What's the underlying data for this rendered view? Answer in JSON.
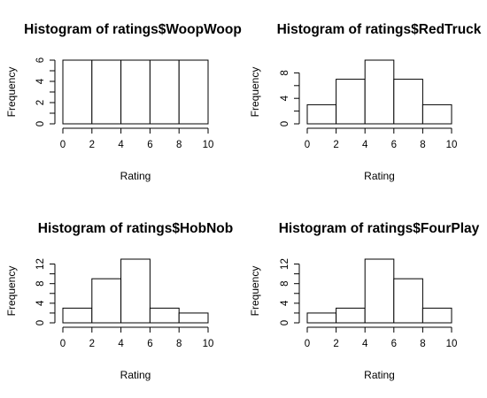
{
  "chart_data": [
    {
      "type": "bar",
      "title": "Histogram of ratings$WoopWoop",
      "xlabel": "Rating",
      "ylabel": "Frequency",
      "bins": [
        [
          0,
          2
        ],
        [
          2,
          4
        ],
        [
          4,
          6
        ],
        [
          6,
          8
        ],
        [
          8,
          10
        ]
      ],
      "values": [
        6,
        6,
        6,
        6,
        6
      ],
      "xlim": [
        0,
        10
      ],
      "ylim": [
        0,
        6
      ],
      "xticks": [
        0,
        2,
        4,
        6,
        8,
        10
      ],
      "yticks": [
        0,
        2,
        4,
        6
      ],
      "bar_color": "#ffffff",
      "grid": false
    },
    {
      "type": "bar",
      "title": "Histogram of ratings$RedTruck",
      "xlabel": "Rating",
      "ylabel": "Frequency",
      "bins": [
        [
          0,
          2
        ],
        [
          2,
          4
        ],
        [
          4,
          6
        ],
        [
          6,
          8
        ],
        [
          8,
          10
        ]
      ],
      "values": [
        3,
        7,
        10,
        7,
        3
      ],
      "xlim": [
        0,
        10
      ],
      "ylim": [
        0,
        10
      ],
      "xticks": [
        0,
        2,
        4,
        6,
        8,
        10
      ],
      "yticks": [
        0,
        4,
        8
      ],
      "bar_color": "#ffffff",
      "grid": false
    },
    {
      "type": "bar",
      "title": "Histogram of ratings$HobNob",
      "xlabel": "Rating",
      "ylabel": "Frequency",
      "bins": [
        [
          0,
          2
        ],
        [
          2,
          4
        ],
        [
          4,
          6
        ],
        [
          6,
          8
        ],
        [
          8,
          10
        ]
      ],
      "values": [
        3,
        9,
        13,
        3,
        2
      ],
      "xlim": [
        0,
        10
      ],
      "ylim": [
        0,
        13
      ],
      "xticks": [
        0,
        2,
        4,
        6,
        8,
        10
      ],
      "yticks": [
        0,
        4,
        8,
        12
      ],
      "bar_color": "#ffffff",
      "grid": false
    },
    {
      "type": "bar",
      "title": "Histogram of ratings$FourPlay",
      "xlabel": "Rating",
      "ylabel": "Frequency",
      "bins": [
        [
          0,
          2
        ],
        [
          2,
          4
        ],
        [
          4,
          6
        ],
        [
          6,
          8
        ],
        [
          8,
          10
        ]
      ],
      "values": [
        2,
        3,
        13,
        9,
        3
      ],
      "xlim": [
        0,
        10
      ],
      "ylim": [
        0,
        13
      ],
      "xticks": [
        0,
        2,
        4,
        6,
        8,
        10
      ],
      "yticks": [
        0,
        4,
        8,
        12
      ],
      "bar_color": "#ffffff",
      "grid": false
    }
  ]
}
